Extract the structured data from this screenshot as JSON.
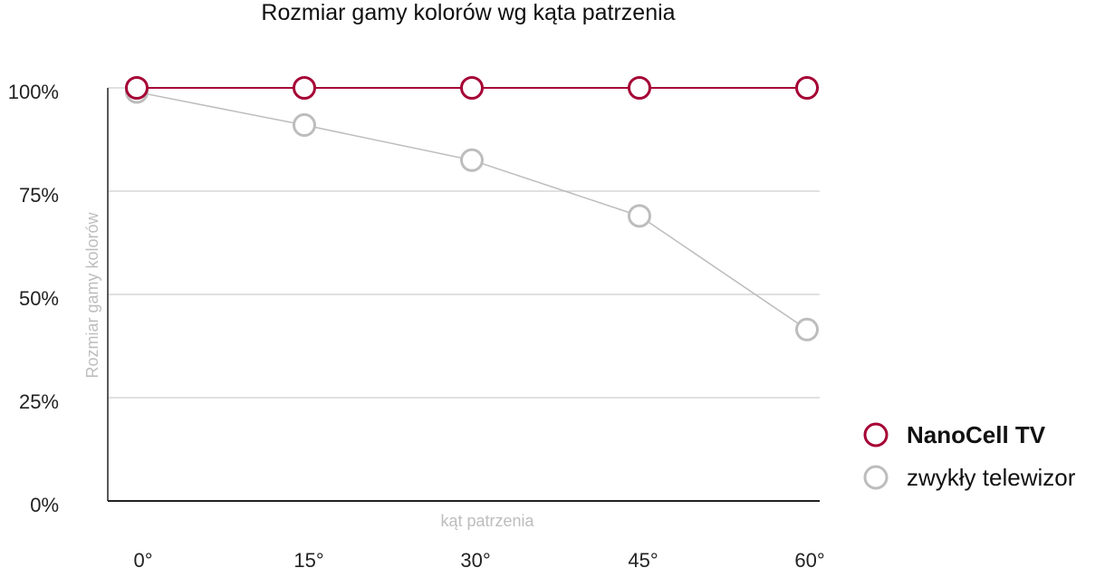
{
  "chart_data": {
    "type": "line",
    "title": "Rozmiar gamy kolorów wg kąta patrzenia",
    "xlabel": "kąt patrzenia",
    "ylabel": "Rozmiar gamy kolorów",
    "x": [
      0,
      15,
      30,
      45,
      60
    ],
    "x_tick_labels": [
      "0°",
      "15°",
      "30°",
      "45°",
      "60°"
    ],
    "y_tick_labels": [
      "100%",
      "75%",
      "50%",
      "25%",
      "0%"
    ],
    "y_ticks": [
      100,
      75,
      50,
      25,
      0
    ],
    "ylim": [
      0,
      100
    ],
    "grid": true,
    "legend_position": "bottom-right",
    "series": [
      {
        "name": "NanoCell TV",
        "values": [
          100,
          100,
          100,
          100,
          100
        ],
        "color": "#a50034",
        "legend_style": "bold"
      },
      {
        "name": "zwykły telewizor",
        "values": [
          99,
          91,
          82.5,
          69,
          41.5
        ],
        "color": "#bdbdbd",
        "legend_style": "normal"
      }
    ]
  }
}
